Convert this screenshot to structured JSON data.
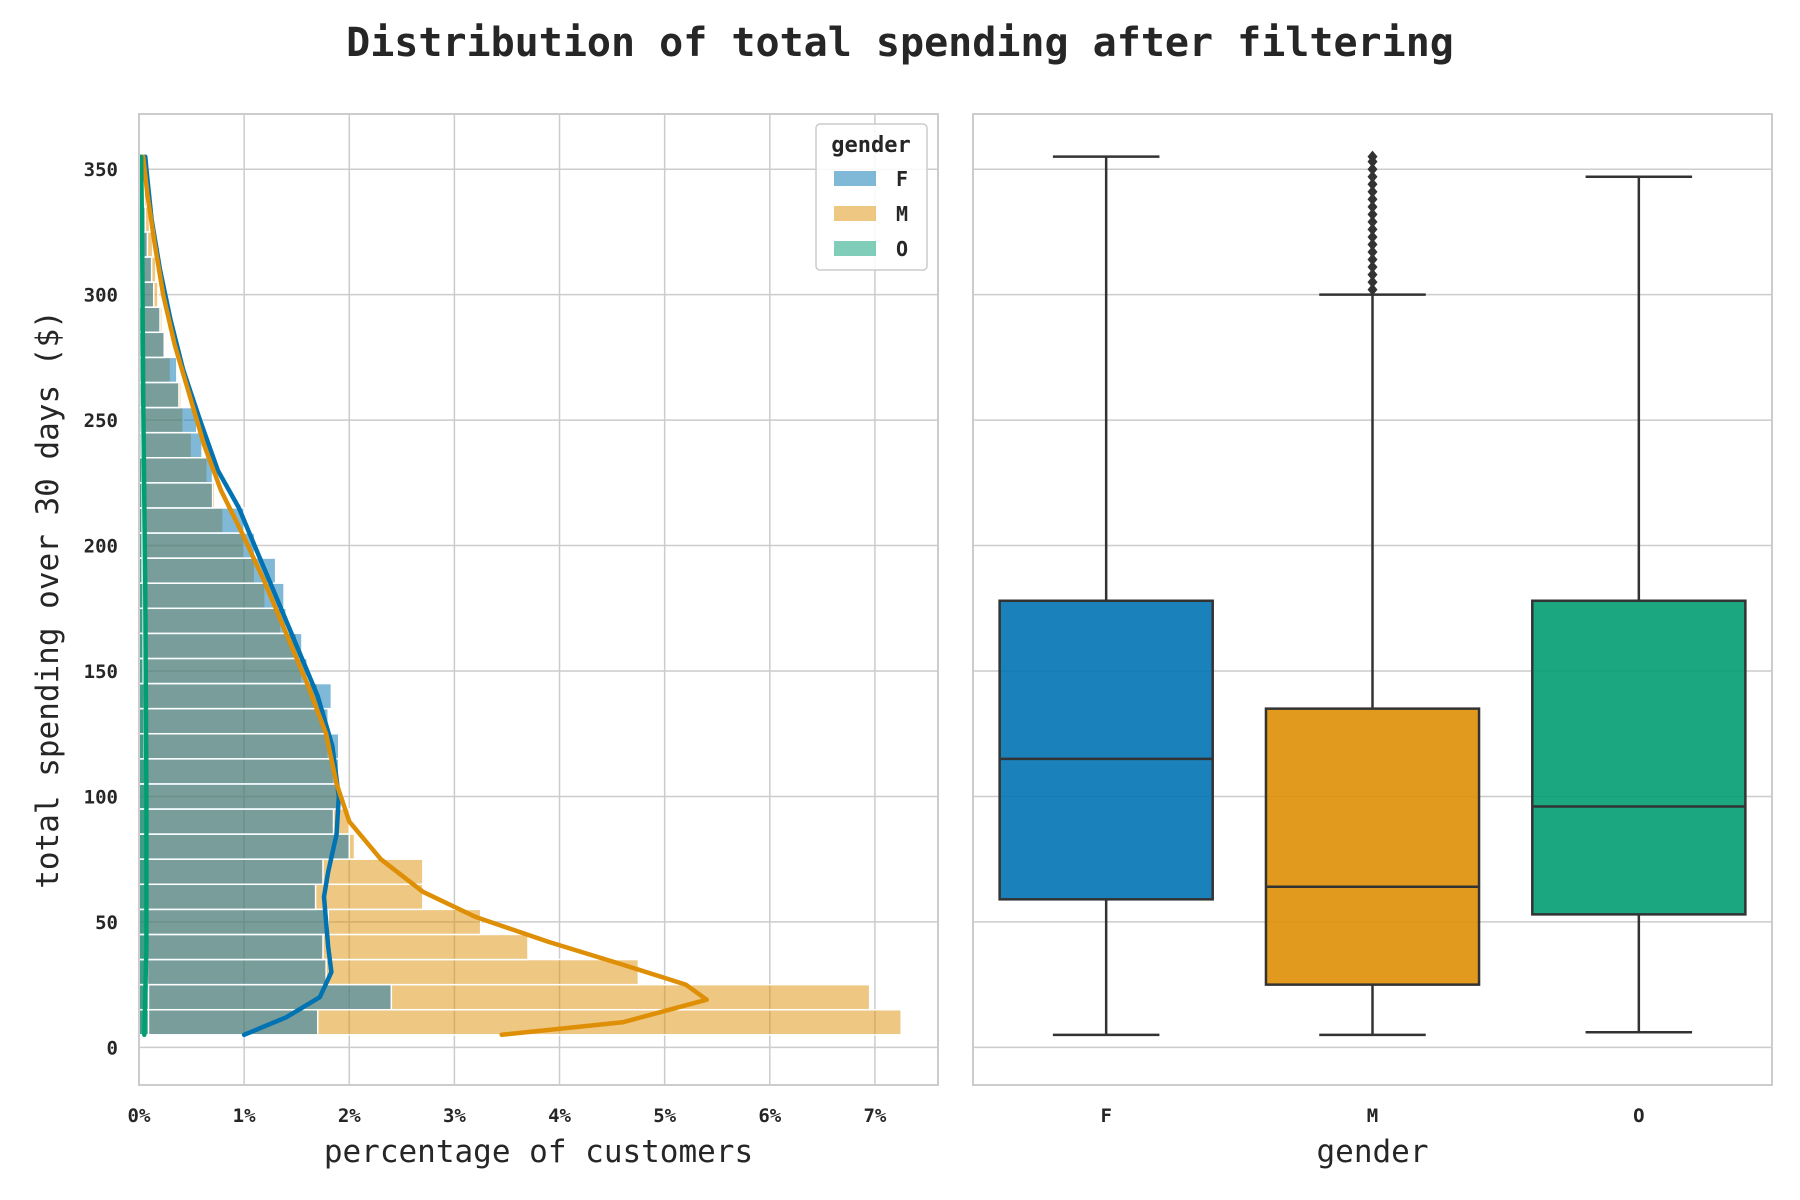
{
  "figure": {
    "title": "Distribution of total spending after filtering"
  },
  "colors": {
    "F": "#0173b2",
    "M": "#de8f05",
    "O": "#029e73",
    "grid": "#cccccc",
    "frame": "#cccccc",
    "box_line": "#333333"
  },
  "chart_data": [
    {
      "type": "histogram",
      "orientation": "horizontal",
      "xlabel": "percentage of customers",
      "ylabel": "total spending over 30 days ($)",
      "xlim": [
        0,
        7.6
      ],
      "ylim": [
        -15,
        372
      ],
      "x_ticks": [
        0,
        1,
        2,
        3,
        4,
        5,
        6,
        7
      ],
      "x_tick_labels": [
        "0%",
        "1%",
        "2%",
        "3%",
        "4%",
        "5%",
        "6%",
        "7%"
      ],
      "y_ticks": [
        0,
        50,
        100,
        150,
        200,
        250,
        300,
        350
      ],
      "y_tick_labels": [
        "0",
        "50",
        "100",
        "150",
        "200",
        "250",
        "300",
        "350"
      ],
      "grid": true,
      "legend": {
        "title": "gender",
        "placement": "top-right",
        "entries": [
          "F",
          "M",
          "O"
        ]
      },
      "bin_edges": [
        5,
        15,
        25,
        35,
        45,
        55,
        65,
        75,
        85,
        95,
        105,
        115,
        125,
        135,
        145,
        155,
        165,
        175,
        185,
        195,
        205,
        215,
        225,
        235,
        245,
        255,
        265,
        275,
        285,
        295,
        305,
        315,
        325,
        335,
        345,
        355
      ],
      "series": [
        {
          "name": "F",
          "values": [
            1.7,
            2.4,
            1.78,
            1.75,
            1.8,
            1.68,
            1.75,
            2.0,
            1.85,
            1.9,
            1.9,
            1.9,
            1.8,
            1.83,
            1.6,
            1.55,
            1.4,
            1.38,
            1.3,
            1.1,
            1.0,
            0.7,
            0.7,
            0.6,
            0.55,
            0.38,
            0.36,
            0.24,
            0.2,
            0.14,
            0.12,
            0.08,
            0.06,
            0.05,
            0.04
          ],
          "kde": [
            [
              1.0,
              5
            ],
            [
              1.4,
              12
            ],
            [
              1.72,
              20
            ],
            [
              1.83,
              30
            ],
            [
              1.8,
              40
            ],
            [
              1.78,
              50
            ],
            [
              1.76,
              60
            ],
            [
              1.8,
              70
            ],
            [
              1.88,
              85
            ],
            [
              1.9,
              100
            ],
            [
              1.84,
              120
            ],
            [
              1.7,
              140
            ],
            [
              1.5,
              160
            ],
            [
              1.3,
              180
            ],
            [
              1.1,
              200
            ],
            [
              0.95,
              215
            ],
            [
              0.75,
              230
            ],
            [
              0.58,
              250
            ],
            [
              0.42,
              270
            ],
            [
              0.3,
              290
            ],
            [
              0.2,
              310
            ],
            [
              0.12,
              330
            ],
            [
              0.07,
              350
            ],
            [
              0.06,
              355
            ]
          ]
        },
        {
          "name": "M",
          "values": [
            7.25,
            6.95,
            4.75,
            3.7,
            3.25,
            2.7,
            2.7,
            2.05,
            2.0,
            1.9,
            1.85,
            1.8,
            1.78,
            1.7,
            1.55,
            1.5,
            1.35,
            1.2,
            1.1,
            1.0,
            0.8,
            0.72,
            0.65,
            0.5,
            0.42,
            0.4,
            0.3,
            0.25,
            0.22,
            0.18,
            0.16,
            0.13,
            0.1,
            0.07,
            0.05
          ],
          "kde": [
            [
              3.45,
              5
            ],
            [
              4.6,
              10
            ],
            [
              5.4,
              19
            ],
            [
              5.2,
              25
            ],
            [
              4.6,
              33
            ],
            [
              3.9,
              42
            ],
            [
              3.2,
              52
            ],
            [
              2.7,
              62
            ],
            [
              2.3,
              75
            ],
            [
              2.0,
              90
            ],
            [
              1.88,
              105
            ],
            [
              1.78,
              125
            ],
            [
              1.6,
              145
            ],
            [
              1.4,
              165
            ],
            [
              1.2,
              185
            ],
            [
              0.98,
              205
            ],
            [
              0.78,
              222
            ],
            [
              0.62,
              240
            ],
            [
              0.48,
              260
            ],
            [
              0.34,
              280
            ],
            [
              0.23,
              300
            ],
            [
              0.15,
              320
            ],
            [
              0.08,
              340
            ],
            [
              0.04,
              355
            ]
          ]
        },
        {
          "name": "O",
          "values": [
            0.09,
            0.09,
            0.08,
            0.08,
            0.08,
            0.07,
            0.07,
            0.07,
            0.06,
            0.06,
            0.06,
            0.05,
            0.05,
            0.05,
            0.04,
            0.04,
            0.04,
            0.04,
            0.03,
            0.03,
            0.03,
            0.03,
            0.03,
            0.02,
            0.02,
            0.02,
            0.02,
            0.02,
            0.02,
            0.01,
            0.01,
            0.01,
            0.01,
            0.01,
            0.01
          ],
          "kde": [
            [
              0.05,
              5
            ],
            [
              0.07,
              40
            ],
            [
              0.07,
              100
            ],
            [
              0.06,
              180
            ],
            [
              0.04,
              260
            ],
            [
              0.03,
              320
            ],
            [
              0.02,
              355
            ]
          ]
        }
      ]
    },
    {
      "type": "box",
      "xlabel": "gender",
      "ylabel": "",
      "ylim": [
        -15,
        372
      ],
      "y_ticks": [
        0,
        50,
        100,
        150,
        200,
        250,
        300,
        350
      ],
      "grid": true,
      "categories": [
        "F",
        "M",
        "O"
      ],
      "boxes": [
        {
          "name": "F",
          "whisker_low": 5,
          "q1": 59,
          "median": 115,
          "q3": 178,
          "whisker_high": 355,
          "outliers": []
        },
        {
          "name": "M",
          "whisker_low": 5,
          "q1": 25,
          "median": 64,
          "q3": 135,
          "whisker_high": 300,
          "outliers": [
            302,
            305,
            308,
            311,
            314,
            317,
            320,
            323,
            326,
            329,
            332,
            335,
            338,
            341,
            344,
            347,
            350,
            353,
            355
          ]
        },
        {
          "name": "O",
          "whisker_low": 6,
          "q1": 53,
          "median": 96,
          "q3": 178,
          "whisker_high": 347,
          "outliers": []
        }
      ]
    }
  ]
}
